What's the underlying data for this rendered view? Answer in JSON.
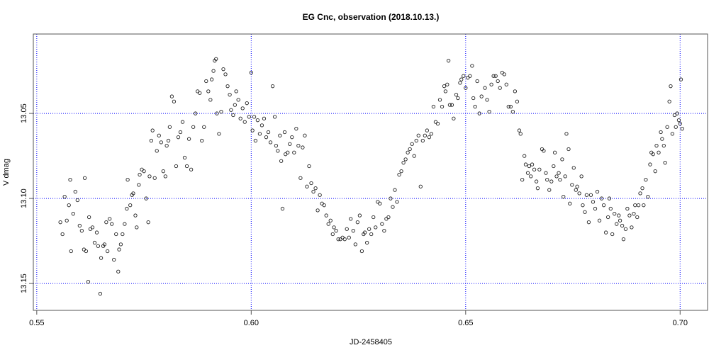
{
  "chart_data": {
    "type": "scatter",
    "title": "EG Cnc, observation (2018.10.13.)",
    "xlabel": "JD-2458405",
    "ylabel": "V dmag",
    "xlim": [
      0.5492,
      0.7064
    ],
    "ylim": [
      13.1658,
      13.0033
    ],
    "y_inverted": true,
    "grid": true,
    "grid_color": "#0000ff",
    "marker": "open-circle",
    "x_ticks": [
      0.55,
      0.6,
      0.65,
      0.7
    ],
    "x_tick_labels": [
      "0.55",
      "0.60",
      "0.65",
      "0.70"
    ],
    "y_ticks": [
      13.05,
      13.1,
      13.15
    ],
    "y_tick_labels": [
      "13.05",
      "13.10",
      "13.15"
    ],
    "points": [
      [
        0.5555,
        13.114
      ],
      [
        0.556,
        13.121
      ],
      [
        0.5565,
        13.099
      ],
      [
        0.557,
        13.113
      ],
      [
        0.5575,
        13.104
      ],
      [
        0.558,
        13.131
      ],
      [
        0.5578,
        13.089
      ],
      [
        0.5585,
        13.109
      ],
      [
        0.559,
        13.096
      ],
      [
        0.5595,
        13.101
      ],
      [
        0.56,
        13.116
      ],
      [
        0.5605,
        13.119
      ],
      [
        0.561,
        13.13
      ],
      [
        0.5612,
        13.088
      ],
      [
        0.5615,
        13.131
      ],
      [
        0.562,
        13.149
      ],
      [
        0.5622,
        13.111
      ],
      [
        0.5625,
        13.118
      ],
      [
        0.563,
        13.117
      ],
      [
        0.5635,
        13.126
      ],
      [
        0.564,
        13.12
      ],
      [
        0.5643,
        13.128
      ],
      [
        0.5648,
        13.156
      ],
      [
        0.565,
        13.135
      ],
      [
        0.5655,
        13.128
      ],
      [
        0.5658,
        13.127
      ],
      [
        0.5662,
        13.114
      ],
      [
        0.5665,
        13.131
      ],
      [
        0.567,
        13.112
      ],
      [
        0.5675,
        13.115
      ],
      [
        0.568,
        13.136
      ],
      [
        0.5685,
        13.121
      ],
      [
        0.569,
        13.143
      ],
      [
        0.5692,
        13.13
      ],
      [
        0.5696,
        13.127
      ],
      [
        0.57,
        13.121
      ],
      [
        0.5705,
        13.115
      ],
      [
        0.571,
        13.106
      ],
      [
        0.5712,
        13.089
      ],
      [
        0.5718,
        13.104
      ],
      [
        0.5722,
        13.098
      ],
      [
        0.5725,
        13.097
      ],
      [
        0.573,
        13.11
      ],
      [
        0.5733,
        13.117
      ],
      [
        0.5738,
        13.092
      ],
      [
        0.574,
        13.086
      ],
      [
        0.5745,
        13.083
      ],
      [
        0.575,
        13.084
      ],
      [
        0.5755,
        13.1
      ],
      [
        0.576,
        13.114
      ],
      [
        0.5763,
        13.087
      ],
      [
        0.5767,
        13.066
      ],
      [
        0.577,
        13.06
      ],
      [
        0.5775,
        13.088
      ],
      [
        0.578,
        13.072
      ],
      [
        0.5785,
        13.063
      ],
      [
        0.579,
        13.067
      ],
      [
        0.5795,
        13.084
      ],
      [
        0.58,
        13.087
      ],
      [
        0.5803,
        13.069
      ],
      [
        0.5807,
        13.066
      ],
      [
        0.581,
        13.058
      ],
      [
        0.5815,
        13.04
      ],
      [
        0.582,
        13.043
      ],
      [
        0.5825,
        13.081
      ],
      [
        0.583,
        13.064
      ],
      [
        0.5835,
        13.061
      ],
      [
        0.584,
        13.055
      ],
      [
        0.5845,
        13.076
      ],
      [
        0.585,
        13.081
      ],
      [
        0.5855,
        13.065
      ],
      [
        0.586,
        13.083
      ],
      [
        0.5865,
        13.058
      ],
      [
        0.587,
        13.05
      ],
      [
        0.5875,
        13.037
      ],
      [
        0.588,
        13.038
      ],
      [
        0.5885,
        13.066
      ],
      [
        0.589,
        13.058
      ],
      [
        0.5895,
        13.031
      ],
      [
        0.59,
        13.037
      ],
      [
        0.5905,
        13.042
      ],
      [
        0.5908,
        13.03
      ],
      [
        0.5912,
        13.025
      ],
      [
        0.5915,
        13.019
      ],
      [
        0.5918,
        13.018
      ],
      [
        0.592,
        13.05
      ],
      [
        0.5925,
        13.062
      ],
      [
        0.593,
        13.049
      ],
      [
        0.5935,
        13.024
      ],
      [
        0.594,
        13.027
      ],
      [
        0.5945,
        13.034
      ],
      [
        0.595,
        13.039
      ],
      [
        0.5953,
        13.048
      ],
      [
        0.5958,
        13.051
      ],
      [
        0.5962,
        13.045
      ],
      [
        0.5965,
        13.037
      ],
      [
        0.597,
        13.042
      ],
      [
        0.5975,
        13.053
      ],
      [
        0.598,
        13.047
      ],
      [
        0.5985,
        13.055
      ],
      [
        0.599,
        13.044
      ],
      [
        0.5995,
        13.052
      ],
      [
        0.6,
        13.026
      ],
      [
        0.6003,
        13.06
      ],
      [
        0.6007,
        13.052
      ],
      [
        0.601,
        13.066
      ],
      [
        0.6015,
        13.054
      ],
      [
        0.602,
        13.062
      ],
      [
        0.6025,
        13.057
      ],
      [
        0.603,
        13.053
      ],
      [
        0.6035,
        13.064
      ],
      [
        0.604,
        13.061
      ],
      [
        0.6045,
        13.067
      ],
      [
        0.605,
        13.034
      ],
      [
        0.6055,
        13.052
      ],
      [
        0.6058,
        13.069
      ],
      [
        0.6062,
        13.072
      ],
      [
        0.6067,
        13.063
      ],
      [
        0.607,
        13.078
      ],
      [
        0.6073,
        13.106
      ],
      [
        0.6078,
        13.061
      ],
      [
        0.608,
        13.074
      ],
      [
        0.6085,
        13.073
      ],
      [
        0.609,
        13.068
      ],
      [
        0.6095,
        13.064
      ],
      [
        0.61,
        13.073
      ],
      [
        0.6105,
        13.059
      ],
      [
        0.611,
        13.069
      ],
      [
        0.6115,
        13.088
      ],
      [
        0.612,
        13.07
      ],
      [
        0.6125,
        13.063
      ],
      [
        0.613,
        13.093
      ],
      [
        0.6135,
        13.081
      ],
      [
        0.614,
        13.091
      ],
      [
        0.6145,
        13.096
      ],
      [
        0.615,
        13.094
      ],
      [
        0.6155,
        13.107
      ],
      [
        0.616,
        13.098
      ],
      [
        0.6165,
        13.103
      ],
      [
        0.617,
        13.104
      ],
      [
        0.6175,
        13.11
      ],
      [
        0.618,
        13.115
      ],
      [
        0.6185,
        13.113
      ],
      [
        0.619,
        13.121
      ],
      [
        0.6193,
        13.117
      ],
      [
        0.6198,
        13.119
      ],
      [
        0.6203,
        13.124
      ],
      [
        0.6208,
        13.124
      ],
      [
        0.6213,
        13.123
      ],
      [
        0.6218,
        13.124
      ],
      [
        0.6223,
        13.118
      ],
      [
        0.6228,
        13.123
      ],
      [
        0.6232,
        13.112
      ],
      [
        0.6238,
        13.119
      ],
      [
        0.6243,
        13.127
      ],
      [
        0.6248,
        13.114
      ],
      [
        0.6253,
        13.11
      ],
      [
        0.6258,
        13.131
      ],
      [
        0.6262,
        13.121
      ],
      [
        0.6265,
        13.12
      ],
      [
        0.627,
        13.126
      ],
      [
        0.6275,
        13.118
      ],
      [
        0.628,
        13.121
      ],
      [
        0.6285,
        13.111
      ],
      [
        0.629,
        13.117
      ],
      [
        0.6295,
        13.102
      ],
      [
        0.63,
        13.103
      ],
      [
        0.6305,
        13.115
      ],
      [
        0.631,
        13.119
      ],
      [
        0.6315,
        13.112
      ],
      [
        0.632,
        13.111
      ],
      [
        0.6325,
        13.1
      ],
      [
        0.633,
        13.105
      ],
      [
        0.6335,
        13.095
      ],
      [
        0.634,
        13.102
      ],
      [
        0.6345,
        13.086
      ],
      [
        0.635,
        13.084
      ],
      [
        0.6355,
        13.079
      ],
      [
        0.636,
        13.077
      ],
      [
        0.6365,
        13.073
      ],
      [
        0.637,
        13.071
      ],
      [
        0.6375,
        13.068
      ],
      [
        0.638,
        13.075
      ],
      [
        0.6385,
        13.066
      ],
      [
        0.639,
        13.063
      ],
      [
        0.6395,
        13.093
      ],
      [
        0.64,
        13.066
      ],
      [
        0.6405,
        13.063
      ],
      [
        0.641,
        13.06
      ],
      [
        0.6415,
        13.064
      ],
      [
        0.642,
        13.062
      ],
      [
        0.6425,
        13.046
      ],
      [
        0.643,
        13.055
      ],
      [
        0.6435,
        13.056
      ],
      [
        0.644,
        13.042
      ],
      [
        0.6445,
        13.046
      ],
      [
        0.645,
        13.034
      ],
      [
        0.6453,
        13.037
      ],
      [
        0.6457,
        13.033
      ],
      [
        0.646,
        13.019
      ],
      [
        0.6463,
        13.045
      ],
      [
        0.6468,
        13.045
      ],
      [
        0.6472,
        13.053
      ],
      [
        0.6478,
        13.039
      ],
      [
        0.6482,
        13.041
      ],
      [
        0.6487,
        13.032
      ],
      [
        0.649,
        13.03
      ],
      [
        0.6495,
        13.028
      ],
      [
        0.65,
        13.035
      ],
      [
        0.6505,
        13.029
      ],
      [
        0.651,
        13.028
      ],
      [
        0.6515,
        13.022
      ],
      [
        0.6518,
        13.041
      ],
      [
        0.6522,
        13.046
      ],
      [
        0.6527,
        13.031
      ],
      [
        0.6532,
        13.05
      ],
      [
        0.6537,
        13.04
      ],
      [
        0.6545,
        13.035
      ],
      [
        0.655,
        13.042
      ],
      [
        0.6555,
        13.049
      ],
      [
        0.656,
        13.033
      ],
      [
        0.6565,
        13.028
      ],
      [
        0.657,
        13.028
      ],
      [
        0.6575,
        13.031
      ],
      [
        0.658,
        13.035
      ],
      [
        0.6585,
        13.026
      ],
      [
        0.659,
        13.027
      ],
      [
        0.6595,
        13.033
      ],
      [
        0.66,
        13.046
      ],
      [
        0.6605,
        13.046
      ],
      [
        0.661,
        13.049
      ],
      [
        0.6615,
        13.037
      ],
      [
        0.662,
        13.043
      ],
      [
        0.6625,
        13.06
      ],
      [
        0.6628,
        13.062
      ],
      [
        0.6632,
        13.089
      ],
      [
        0.6637,
        13.075
      ],
      [
        0.664,
        13.08
      ],
      [
        0.6645,
        13.085
      ],
      [
        0.6648,
        13.081
      ],
      [
        0.6652,
        13.087
      ],
      [
        0.6655,
        13.08
      ],
      [
        0.666,
        13.083
      ],
      [
        0.6665,
        13.09
      ],
      [
        0.6668,
        13.094
      ],
      [
        0.6672,
        13.083
      ],
      [
        0.6678,
        13.071
      ],
      [
        0.6682,
        13.072
      ],
      [
        0.6687,
        13.085
      ],
      [
        0.669,
        13.089
      ],
      [
        0.6695,
        13.095
      ],
      [
        0.67,
        13.09
      ],
      [
        0.6705,
        13.081
      ],
      [
        0.6708,
        13.073
      ],
      [
        0.6712,
        13.087
      ],
      [
        0.6717,
        13.085
      ],
      [
        0.672,
        13.089
      ],
      [
        0.6725,
        13.077
      ],
      [
        0.6728,
        13.099
      ],
      [
        0.6732,
        13.087
      ],
      [
        0.6735,
        13.062
      ],
      [
        0.674,
        13.071
      ],
      [
        0.6743,
        13.103
      ],
      [
        0.6748,
        13.092
      ],
      [
        0.6752,
        13.082
      ],
      [
        0.6757,
        13.095
      ],
      [
        0.676,
        13.093
      ],
      [
        0.6765,
        13.097
      ],
      [
        0.677,
        13.087
      ],
      [
        0.6773,
        13.104
      ],
      [
        0.6778,
        13.108
      ],
      [
        0.6782,
        13.098
      ],
      [
        0.6787,
        13.114
      ],
      [
        0.6792,
        13.098
      ],
      [
        0.6797,
        13.102
      ],
      [
        0.6802,
        13.106
      ],
      [
        0.6807,
        13.096
      ],
      [
        0.6812,
        13.113
      ],
      [
        0.6817,
        13.1
      ],
      [
        0.6822,
        13.104
      ],
      [
        0.6827,
        13.12
      ],
      [
        0.6832,
        13.111
      ],
      [
        0.6835,
        13.1
      ],
      [
        0.6838,
        13.106
      ],
      [
        0.6842,
        13.121
      ],
      [
        0.6847,
        13.109
      ],
      [
        0.6852,
        13.115
      ],
      [
        0.6857,
        13.11
      ],
      [
        0.686,
        13.113
      ],
      [
        0.6865,
        13.116
      ],
      [
        0.6868,
        13.124
      ],
      [
        0.6873,
        13.118
      ],
      [
        0.6877,
        13.106
      ],
      [
        0.6882,
        13.11
      ],
      [
        0.6887,
        13.117
      ],
      [
        0.6892,
        13.109
      ],
      [
        0.6895,
        13.104
      ],
      [
        0.69,
        13.111
      ],
      [
        0.6903,
        13.104
      ],
      [
        0.6907,
        13.097
      ],
      [
        0.6912,
        13.094
      ],
      [
        0.6915,
        13.104
      ],
      [
        0.692,
        13.089
      ],
      [
        0.6925,
        13.099
      ],
      [
        0.693,
        13.08
      ],
      [
        0.6933,
        13.073
      ],
      [
        0.6937,
        13.074
      ],
      [
        0.6942,
        13.084
      ],
      [
        0.6945,
        13.069
      ],
      [
        0.695,
        13.073
      ],
      [
        0.6955,
        13.061
      ],
      [
        0.6958,
        13.065
      ],
      [
        0.6962,
        13.069
      ],
      [
        0.6965,
        13.079
      ],
      [
        0.697,
        13.058
      ],
      [
        0.6975,
        13.043
      ],
      [
        0.6978,
        13.034
      ],
      [
        0.6982,
        13.062
      ],
      [
        0.6987,
        13.051
      ],
      [
        0.699,
        13.058
      ],
      [
        0.6993,
        13.05
      ],
      [
        0.6997,
        13.054
      ],
      [
        0.7,
        13.056
      ],
      [
        0.7002,
        13.03
      ],
      [
        0.7005,
        13.059
      ]
    ]
  }
}
